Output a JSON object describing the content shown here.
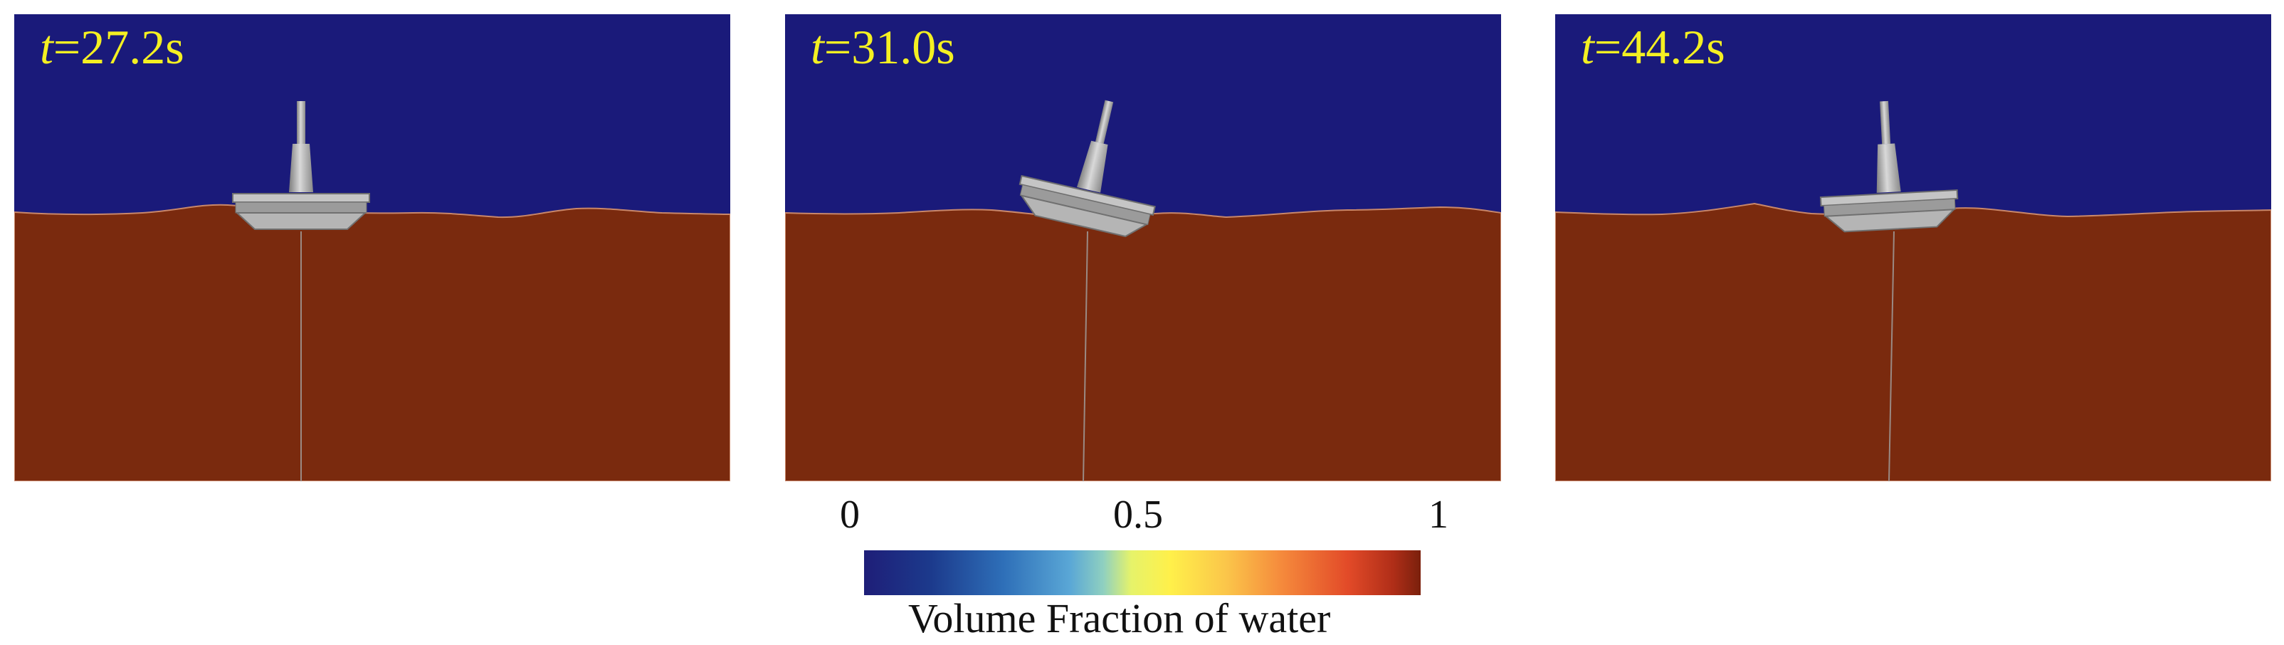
{
  "panels": [
    {
      "time_var": "t",
      "time_value": "=27.2s",
      "tilt_deg": 0
    },
    {
      "time_var": "t",
      "time_value": "=31.0s",
      "tilt_deg": 13
    },
    {
      "time_var": "t",
      "time_value": "=44.2s",
      "tilt_deg": -3
    }
  ],
  "colorbar": {
    "tick_0": "0",
    "tick_mid": "0.5",
    "tick_1": "1",
    "title": "Volume Fraction of water",
    "colormap": "rainbow-diverging (blue-yellow-red)"
  },
  "colors": {
    "air": "#1a1a7a",
    "water": "#7a2a0e",
    "label": "#f4f022",
    "platform": "#a9a9a9"
  }
}
